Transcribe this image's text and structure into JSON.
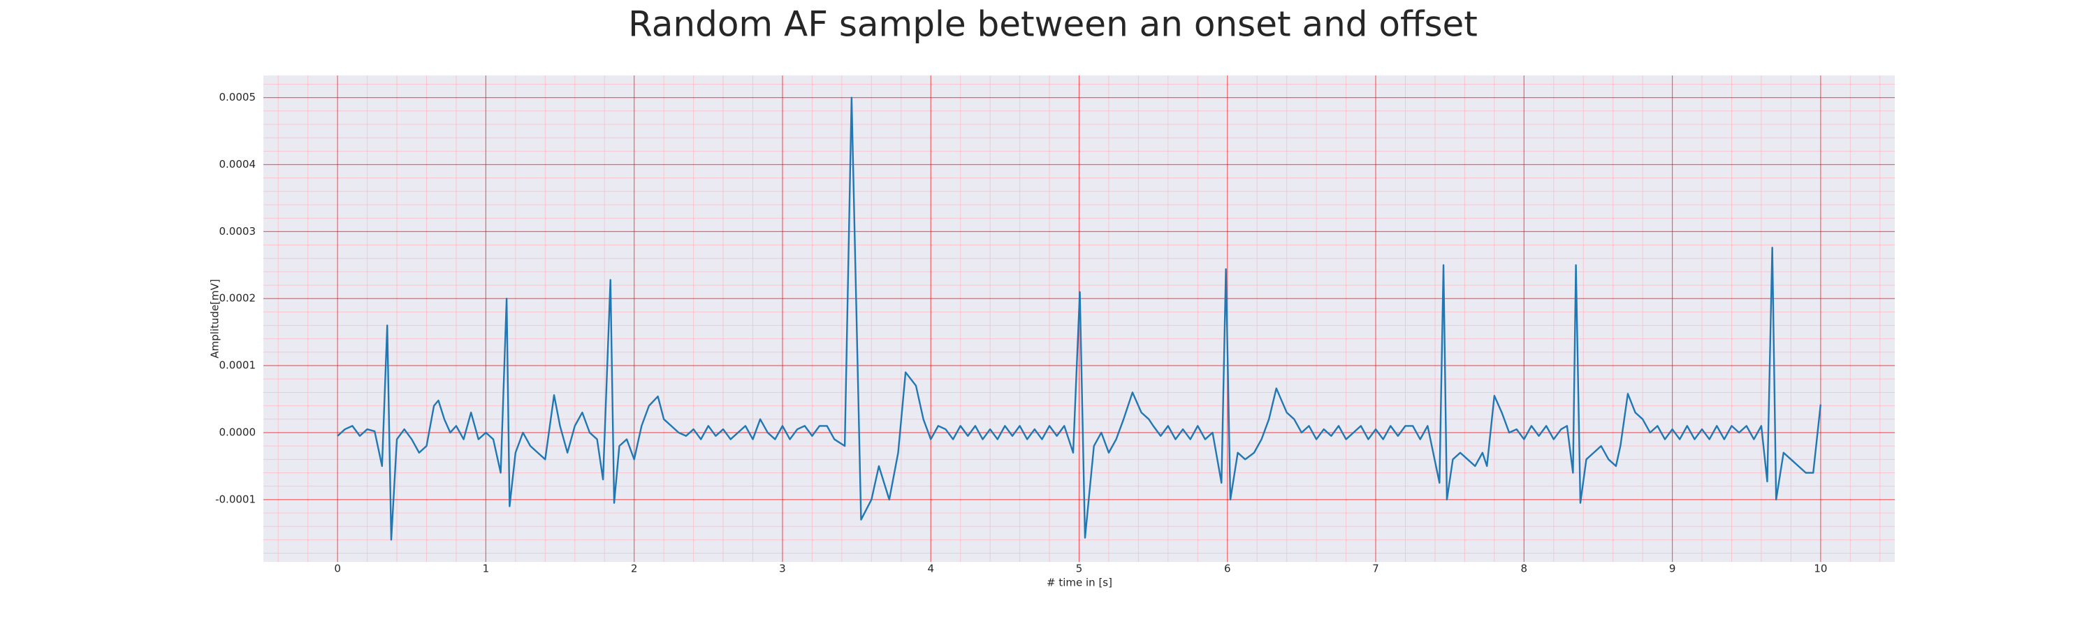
{
  "chart_data": {
    "type": "line",
    "title": "Random AF sample between an onset and offset",
    "xlabel": "# time in [s]",
    "ylabel": "Amplitude[mV]",
    "color": "#1f77b4",
    "grid": true,
    "xlim": [
      -0.5,
      10.5
    ],
    "ylim": [
      -0.000193,
      0.000533
    ],
    "xticks": [
      0,
      1,
      2,
      3,
      4,
      5,
      6,
      7,
      8,
      9,
      10
    ],
    "yticks": [
      -0.0001,
      {
        "value": 0,
        "label": "0.0000"
      },
      0.0001,
      0.0002,
      0.0003,
      0.0004,
      0.0005
    ],
    "xminorticks": [
      -0.4,
      -0.2,
      0.2,
      0.4,
      0.6,
      0.8,
      1.2,
      1.4,
      1.6,
      1.8,
      2.2,
      2.4,
      2.6,
      2.8,
      3.2,
      3.4,
      3.6,
      3.8,
      4.2,
      4.4,
      4.6,
      4.8,
      5.2,
      5.4,
      5.6,
      5.8,
      6.2,
      6.4,
      6.6,
      6.8,
      7.2,
      7.4,
      7.6,
      7.8,
      8.2,
      8.4,
      8.6,
      8.8,
      9.2,
      9.4,
      9.6,
      9.8,
      10.2,
      10.4
    ],
    "yminorticks": [
      -0.00018,
      -0.00016,
      -0.00014,
      -0.00012,
      -8e-05,
      -6e-05,
      -4e-05,
      -2e-05,
      2e-05,
      4e-05,
      6e-05,
      8e-05,
      0.00012,
      0.00014,
      0.00016,
      0.00018,
      0.00022,
      0.00024,
      0.00026,
      0.00028,
      0.00032,
      0.00034,
      0.00036,
      0.00038,
      0.00042,
      0.00044,
      0.00046,
      0.00048,
      0.00052
    ],
    "x": [
      0,
      0.05,
      0.1,
      0.15,
      0.2,
      0.25,
      0.3,
      0.335,
      0.362,
      0.4,
      0.45,
      0.5,
      0.55,
      0.6,
      0.65,
      0.68,
      0.72,
      0.76,
      0.8,
      0.85,
      0.9,
      0.95,
      1.0,
      1.05,
      1.1,
      1.14,
      1.16,
      1.2,
      1.25,
      1.3,
      1.35,
      1.4,
      1.46,
      1.5,
      1.55,
      1.6,
      1.65,
      1.7,
      1.75,
      1.79,
      1.84,
      1.865,
      1.9,
      1.95,
      2.0,
      2.05,
      2.1,
      2.16,
      2.2,
      2.25,
      2.3,
      2.35,
      2.4,
      2.45,
      2.5,
      2.55,
      2.6,
      2.65,
      2.7,
      2.75,
      2.8,
      2.85,
      2.9,
      2.95,
      3.0,
      3.05,
      3.1,
      3.15,
      3.2,
      3.25,
      3.3,
      3.35,
      3.42,
      3.466,
      3.53,
      3.6,
      3.65,
      3.72,
      3.78,
      3.83,
      3.9,
      3.95,
      4.0,
      4.05,
      4.1,
      4.15,
      4.2,
      4.25,
      4.3,
      4.35,
      4.4,
      4.45,
      4.5,
      4.55,
      4.6,
      4.65,
      4.7,
      4.75,
      4.8,
      4.85,
      4.9,
      4.96,
      5.005,
      5.04,
      5.1,
      5.15,
      5.2,
      5.25,
      5.3,
      5.36,
      5.42,
      5.47,
      5.5,
      5.55,
      5.6,
      5.65,
      5.7,
      5.75,
      5.8,
      5.85,
      5.9,
      5.96,
      5.99,
      6.02,
      6.07,
      6.12,
      6.18,
      6.23,
      6.28,
      6.33,
      6.4,
      6.45,
      6.5,
      6.55,
      6.6,
      6.65,
      6.7,
      6.75,
      6.8,
      6.85,
      6.9,
      6.95,
      7.0,
      7.05,
      7.1,
      7.15,
      7.2,
      7.25,
      7.3,
      7.35,
      7.43,
      7.457,
      7.48,
      7.52,
      7.57,
      7.62,
      7.67,
      7.72,
      7.75,
      7.8,
      7.85,
      7.9,
      7.95,
      8.0,
      8.05,
      8.1,
      8.15,
      8.2,
      8.25,
      8.29,
      8.33,
      8.35,
      8.38,
      8.42,
      8.47,
      8.52,
      8.57,
      8.62,
      8.65,
      8.7,
      8.75,
      8.8,
      8.85,
      8.9,
      8.95,
      9.0,
      9.05,
      9.1,
      9.15,
      9.2,
      9.25,
      9.3,
      9.35,
      9.4,
      9.45,
      9.5,
      9.55,
      9.6,
      9.64,
      9.674,
      9.7,
      9.75,
      9.8,
      9.85,
      9.9,
      9.95,
      10.0
    ],
    "values": [
      -5e-06,
      5e-06,
      1e-05,
      -5e-06,
      5e-06,
      2e-06,
      -5e-05,
      0.00016,
      -0.00016,
      -1e-05,
      5e-06,
      -1e-05,
      -3e-05,
      -2e-05,
      4e-05,
      4.8e-05,
      2e-05,
      0,
      1e-05,
      -1e-05,
      3e-05,
      -1e-05,
      0,
      -1e-05,
      -6e-05,
      0.0002,
      -0.00011,
      -3e-05,
      0,
      -2e-05,
      -3e-05,
      -4e-05,
      5.6e-05,
      1e-05,
      -3e-05,
      1e-05,
      3e-05,
      0,
      -1e-05,
      -7e-05,
      0.000228,
      -0.000105,
      -2e-05,
      -1e-05,
      -4e-05,
      1e-05,
      4e-05,
      5.4e-05,
      2e-05,
      1e-05,
      0,
      -5e-06,
      5e-06,
      -1e-05,
      1e-05,
      -5e-06,
      5e-06,
      -1e-05,
      0,
      1e-05,
      -1e-05,
      2e-05,
      0,
      -1e-05,
      1e-05,
      -1e-05,
      5e-06,
      1e-05,
      -5e-06,
      1e-05,
      1e-05,
      -1e-05,
      -2e-05,
      0.0005,
      -0.00013,
      -0.0001,
      -5e-05,
      -0.0001,
      -3e-05,
      9e-05,
      7e-05,
      2e-05,
      -1e-05,
      1e-05,
      5e-06,
      -1e-05,
      1e-05,
      -5e-06,
      1e-05,
      -1e-05,
      5e-06,
      -1e-05,
      1e-05,
      -5e-06,
      1e-05,
      -1e-05,
      5e-06,
      -1e-05,
      1e-05,
      -5e-06,
      1e-05,
      -3e-05,
      0.00021,
      -0.000157,
      -2e-05,
      0,
      -3e-05,
      -1e-05,
      2e-05,
      6e-05,
      3e-05,
      2e-05,
      1e-05,
      -5e-06,
      1e-05,
      -1e-05,
      5e-06,
      -1e-05,
      1e-05,
      -1e-05,
      0,
      -7.5e-05,
      0.000244,
      -0.0001,
      -3e-05,
      -4e-05,
      -3e-05,
      -1e-05,
      2e-05,
      6.6e-05,
      3e-05,
      2e-05,
      0,
      1e-05,
      -1e-05,
      5e-06,
      -5e-06,
      1e-05,
      -1e-05,
      0,
      1e-05,
      -1e-05,
      5e-06,
      -1e-05,
      1e-05,
      -5e-06,
      1e-05,
      1e-05,
      -1e-05,
      1e-05,
      -7.5e-05,
      0.00025,
      -0.0001,
      -4e-05,
      -3e-05,
      -4e-05,
      -5e-05,
      -3e-05,
      -5e-05,
      5.5e-05,
      3e-05,
      0,
      5e-06,
      -1e-05,
      1e-05,
      -5e-06,
      1e-05,
      -1e-05,
      5e-06,
      1e-05,
      -6e-05,
      0.00025,
      -0.000105,
      -4e-05,
      -3e-05,
      -2e-05,
      -4e-05,
      -5e-05,
      -2e-05,
      5.8e-05,
      3e-05,
      2e-05,
      0,
      1e-05,
      -1e-05,
      5e-06,
      -1e-05,
      1e-05,
      -1e-05,
      5e-06,
      -1e-05,
      1e-05,
      -1e-05,
      1e-05,
      0,
      1e-05,
      -1e-05,
      1e-05,
      -7.3e-05,
      0.000276,
      -0.0001,
      -3e-05,
      -4e-05,
      -5e-05,
      -6e-05,
      -6e-05,
      4.2e-05
    ]
  }
}
